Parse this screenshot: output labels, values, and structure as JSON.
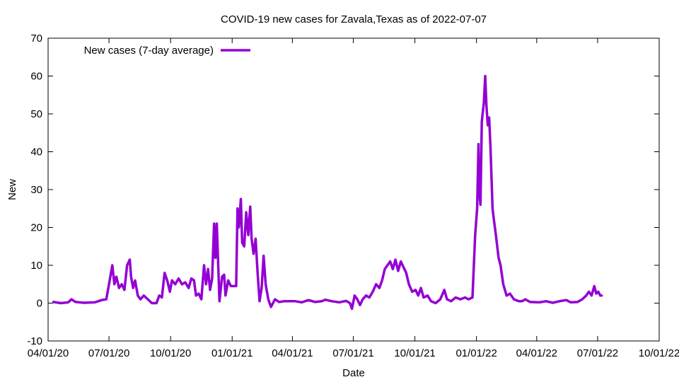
{
  "chart_data": {
    "type": "line",
    "title": "COVID-19 new cases for Zavala,Texas as of 2022-07-07",
    "xlabel": "Date",
    "ylabel": "New",
    "xlim": [
      "2020-04-01",
      "2022-10-01"
    ],
    "ylim": [
      -10,
      70
    ],
    "y_ticks": [
      -10,
      0,
      10,
      20,
      30,
      40,
      50,
      60,
      70
    ],
    "x_ticks": [
      {
        "date": "2020-04-01",
        "label": "04/01/20"
      },
      {
        "date": "2020-07-01",
        "label": "07/01/20"
      },
      {
        "date": "2020-10-01",
        "label": "10/01/20"
      },
      {
        "date": "2021-01-01",
        "label": "01/01/21"
      },
      {
        "date": "2021-04-01",
        "label": "04/01/21"
      },
      {
        "date": "2021-07-01",
        "label": "07/01/21"
      },
      {
        "date": "2021-10-01",
        "label": "10/01/21"
      },
      {
        "date": "2022-01-01",
        "label": "01/01/22"
      },
      {
        "date": "2022-04-01",
        "label": "04/01/22"
      },
      {
        "date": "2022-07-01",
        "label": "07/01/22"
      },
      {
        "date": "2022-10-01",
        "label": "10/01/22"
      }
    ],
    "grid": false,
    "legend_position": "top-left",
    "series": [
      {
        "name": "New cases (7-day average)",
        "color": "#9400d3",
        "points": [
          [
            "2020-04-09",
            0.3
          ],
          [
            "2020-04-20",
            0
          ],
          [
            "2020-05-01",
            0.2
          ],
          [
            "2020-05-06",
            1.0
          ],
          [
            "2020-05-12",
            0.3
          ],
          [
            "2020-05-25",
            0.1
          ],
          [
            "2020-06-10",
            0.2
          ],
          [
            "2020-06-20",
            0.8
          ],
          [
            "2020-06-27",
            1.0
          ],
          [
            "2020-07-01",
            5.0
          ],
          [
            "2020-07-06",
            10.0
          ],
          [
            "2020-07-09",
            5.0
          ],
          [
            "2020-07-12",
            7.0
          ],
          [
            "2020-07-16",
            4.0
          ],
          [
            "2020-07-20",
            5.0
          ],
          [
            "2020-07-24",
            3.5
          ],
          [
            "2020-07-28",
            10.0
          ],
          [
            "2020-08-01",
            11.5
          ],
          [
            "2020-08-03",
            7.0
          ],
          [
            "2020-08-06",
            4.0
          ],
          [
            "2020-08-09",
            6.0
          ],
          [
            "2020-08-13",
            2.0
          ],
          [
            "2020-08-17",
            1.0
          ],
          [
            "2020-08-22",
            2.0
          ],
          [
            "2020-08-28",
            1.0
          ],
          [
            "2020-09-03",
            0
          ],
          [
            "2020-09-10",
            0
          ],
          [
            "2020-09-14",
            2.0
          ],
          [
            "2020-09-18",
            1.5
          ],
          [
            "2020-09-22",
            8.0
          ],
          [
            "2020-09-26",
            6.0
          ],
          [
            "2020-09-30",
            3.0
          ],
          [
            "2020-10-03",
            6.0
          ],
          [
            "2020-10-08",
            5.0
          ],
          [
            "2020-10-13",
            6.5
          ],
          [
            "2020-10-18",
            5.0
          ],
          [
            "2020-10-23",
            5.5
          ],
          [
            "2020-10-28",
            4.0
          ],
          [
            "2020-11-01",
            6.5
          ],
          [
            "2020-11-05",
            6.0
          ],
          [
            "2020-11-08",
            2.0
          ],
          [
            "2020-11-12",
            2.5
          ],
          [
            "2020-11-16",
            1.0
          ],
          [
            "2020-11-20",
            10.0
          ],
          [
            "2020-11-23",
            5.0
          ],
          [
            "2020-11-26",
            9.0
          ],
          [
            "2020-11-29",
            3.5
          ],
          [
            "2020-12-02",
            6.5
          ],
          [
            "2020-12-05",
            21.0
          ],
          [
            "2020-12-07",
            12.0
          ],
          [
            "2020-12-09",
            21.0
          ],
          [
            "2020-12-13",
            0.5
          ],
          [
            "2020-12-17",
            7.0
          ],
          [
            "2020-12-20",
            7.5
          ],
          [
            "2020-12-22",
            2.0
          ],
          [
            "2020-12-26",
            6.0
          ],
          [
            "2020-12-30",
            4.5
          ],
          [
            "2021-01-07",
            4.5
          ],
          [
            "2021-01-09",
            25.0
          ],
          [
            "2021-01-11",
            20.0
          ],
          [
            "2021-01-14",
            27.5
          ],
          [
            "2021-01-16",
            16.0
          ],
          [
            "2021-01-19",
            15.0
          ],
          [
            "2021-01-22",
            24.0
          ],
          [
            "2021-01-25",
            18.0
          ],
          [
            "2021-01-28",
            25.5
          ],
          [
            "2021-01-30",
            17.0
          ],
          [
            "2021-02-02",
            13.0
          ],
          [
            "2021-02-05",
            17.0
          ],
          [
            "2021-02-08",
            8.0
          ],
          [
            "2021-02-11",
            0.5
          ],
          [
            "2021-02-14",
            4.0
          ],
          [
            "2021-02-17",
            12.5
          ],
          [
            "2021-02-20",
            5.0
          ],
          [
            "2021-02-24",
            1.0
          ],
          [
            "2021-02-28",
            -1.0
          ],
          [
            "2021-03-06",
            1.0
          ],
          [
            "2021-03-12",
            0.3
          ],
          [
            "2021-03-20",
            0.5
          ],
          [
            "2021-04-05",
            0.5
          ],
          [
            "2021-04-15",
            0.2
          ],
          [
            "2021-04-25",
            0.8
          ],
          [
            "2021-05-05",
            0.3
          ],
          [
            "2021-05-15",
            0.5
          ],
          [
            "2021-05-20",
            0.9
          ],
          [
            "2021-05-30",
            0.5
          ],
          [
            "2021-06-10",
            0.2
          ],
          [
            "2021-06-20",
            0.6
          ],
          [
            "2021-06-26",
            0
          ],
          [
            "2021-06-29",
            -1.5
          ],
          [
            "2021-07-03",
            2.0
          ],
          [
            "2021-07-07",
            1.0
          ],
          [
            "2021-07-11",
            -0.5
          ],
          [
            "2021-07-15",
            1.0
          ],
          [
            "2021-07-20",
            2.0
          ],
          [
            "2021-07-25",
            1.5
          ],
          [
            "2021-07-30",
            3.0
          ],
          [
            "2021-08-04",
            5.0
          ],
          [
            "2021-08-09",
            4.0
          ],
          [
            "2021-08-13",
            6.0
          ],
          [
            "2021-08-17",
            9.0
          ],
          [
            "2021-08-21",
            10.0
          ],
          [
            "2021-08-25",
            11.0
          ],
          [
            "2021-08-29",
            9.0
          ],
          [
            "2021-09-02",
            11.5
          ],
          [
            "2021-09-06",
            8.5
          ],
          [
            "2021-09-10",
            11.0
          ],
          [
            "2021-09-14",
            9.5
          ],
          [
            "2021-09-18",
            8.0
          ],
          [
            "2021-09-22",
            5.0
          ],
          [
            "2021-09-27",
            3.0
          ],
          [
            "2021-10-02",
            3.5
          ],
          [
            "2021-10-06",
            2.0
          ],
          [
            "2021-10-10",
            4.0
          ],
          [
            "2021-10-14",
            1.5
          ],
          [
            "2021-10-20",
            2.0
          ],
          [
            "2021-10-25",
            0.5
          ],
          [
            "2021-11-01",
            0
          ],
          [
            "2021-11-08",
            1.0
          ],
          [
            "2021-11-14",
            3.5
          ],
          [
            "2021-11-18",
            1.0
          ],
          [
            "2021-11-24",
            0.5
          ],
          [
            "2021-12-01",
            1.5
          ],
          [
            "2021-12-08",
            1.0
          ],
          [
            "2021-12-15",
            1.5
          ],
          [
            "2021-12-20",
            1.0
          ],
          [
            "2021-12-26",
            1.5
          ],
          [
            "2021-12-30",
            18.0
          ],
          [
            "2022-01-02",
            25.0
          ],
          [
            "2022-01-04",
            42.0
          ],
          [
            "2022-01-05",
            30.0
          ],
          [
            "2022-01-07",
            26.0
          ],
          [
            "2022-01-09",
            48.0
          ],
          [
            "2022-01-12",
            53.0
          ],
          [
            "2022-01-14",
            60.0
          ],
          [
            "2022-01-16",
            52.0
          ],
          [
            "2022-01-18",
            47.0
          ],
          [
            "2022-01-20",
            49.0
          ],
          [
            "2022-01-22",
            41.0
          ],
          [
            "2022-01-25",
            25.0
          ],
          [
            "2022-01-27",
            22.0
          ],
          [
            "2022-01-30",
            18.0
          ],
          [
            "2022-02-03",
            12.0
          ],
          [
            "2022-02-06",
            10.0
          ],
          [
            "2022-02-10",
            5.0
          ],
          [
            "2022-02-15",
            2.0
          ],
          [
            "2022-02-20",
            2.5
          ],
          [
            "2022-02-26",
            1.0
          ],
          [
            "2022-03-05",
            0.5
          ],
          [
            "2022-03-10",
            0.5
          ],
          [
            "2022-03-15",
            1.0
          ],
          [
            "2022-03-22",
            0.3
          ],
          [
            "2022-04-05",
            0.2
          ],
          [
            "2022-04-15",
            0.5
          ],
          [
            "2022-04-25",
            0.1
          ],
          [
            "2022-05-05",
            0.5
          ],
          [
            "2022-05-15",
            0.8
          ],
          [
            "2022-05-22",
            0.2
          ],
          [
            "2022-06-01",
            0.3
          ],
          [
            "2022-06-08",
            1.0
          ],
          [
            "2022-06-14",
            2.0
          ],
          [
            "2022-06-18",
            3.0
          ],
          [
            "2022-06-22",
            2.0
          ],
          [
            "2022-06-26",
            4.5
          ],
          [
            "2022-06-29",
            2.5
          ],
          [
            "2022-07-02",
            3.0
          ],
          [
            "2022-07-05",
            2.0
          ],
          [
            "2022-07-07",
            2.0
          ]
        ]
      }
    ]
  }
}
